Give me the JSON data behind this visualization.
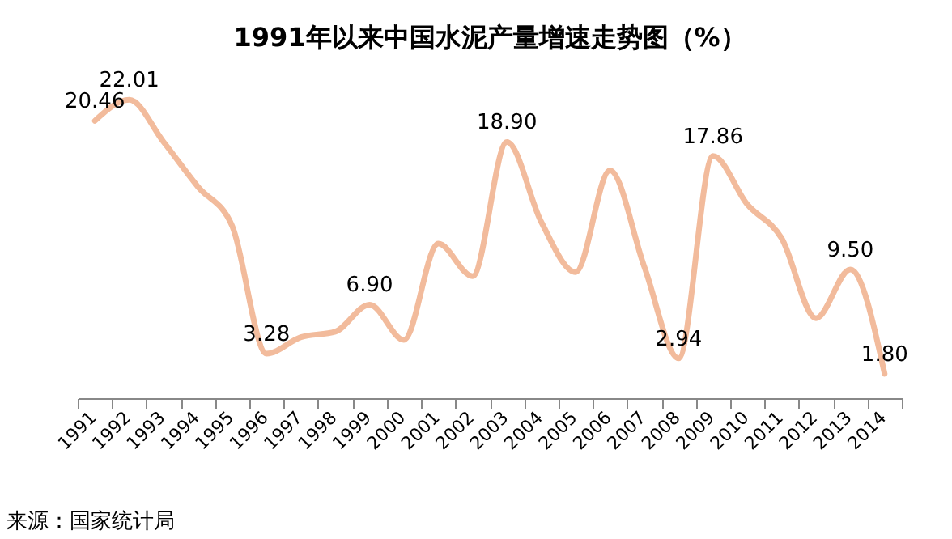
{
  "chart_data": {
    "type": "line",
    "title": "1991年以来中国水泥产量增速走势图（%）",
    "categories": [
      "1991",
      "1992",
      "1993",
      "1994",
      "1995",
      "1996",
      "1997",
      "1998",
      "1999",
      "2000",
      "2001",
      "2002",
      "2003",
      "2004",
      "2005",
      "2006",
      "2007",
      "2008",
      "2009",
      "2010",
      "2011",
      "2012",
      "2013",
      "2014"
    ],
    "series": [
      {
        "color": "#f2bb9c",
        "values": [
          20.46,
          22.01,
          18.9,
          15.6,
          12.7,
          3.28,
          4.5,
          4.9,
          6.9,
          4.3,
          11.4,
          9.0,
          18.9,
          13.0,
          9.3,
          16.8,
          9.7,
          2.94,
          17.86,
          14.3,
          11.8,
          5.9,
          9.5,
          1.8
        ],
        "value_labels": [
          "20.46",
          "22.01",
          null,
          null,
          null,
          "3.28",
          null,
          null,
          "6.90",
          null,
          null,
          null,
          "18.90",
          null,
          null,
          null,
          null,
          "2.94",
          "17.86",
          null,
          null,
          null,
          "9.50",
          "1.80"
        ]
      }
    ],
    "tick_labels": "x",
    "grid": false,
    "legend": false,
    "marker": "none",
    "annotations": [
      "来源：国家统计局"
    ]
  }
}
